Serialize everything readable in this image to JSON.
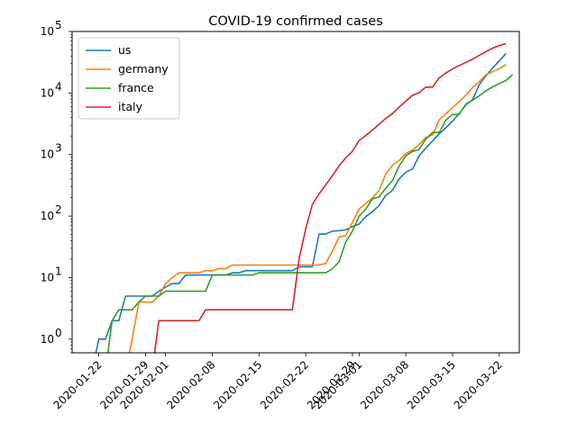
{
  "chart_data": {
    "type": "line",
    "title": "COVID-19 confirmed cases",
    "xlabel": "",
    "ylabel": "",
    "yscale": "log",
    "ylim": [
      0.6,
      100000
    ],
    "xlim": [
      "2020-01-18",
      "2020-03-25"
    ],
    "grid": false,
    "legend_position": "top-left",
    "x_ticks": [
      "2020-01-22",
      "2020-01-29",
      "2020-02-01",
      "2020-02-08",
      "2020-02-15",
      "2020-02-22",
      "2020-02-29",
      "2020-03-01",
      "2020-03-08",
      "2020-03-15",
      "2020-03-22"
    ],
    "y_ticks": [
      {
        "base": "10",
        "exp": "0",
        "value": 1
      },
      {
        "base": "10",
        "exp": "1",
        "value": 10
      },
      {
        "base": "10",
        "exp": "2",
        "value": 100
      },
      {
        "base": "10",
        "exp": "3",
        "value": 1000
      },
      {
        "base": "10",
        "exp": "4",
        "value": 10000
      },
      {
        "base": "10",
        "exp": "5",
        "value": 100000
      }
    ],
    "series": [
      {
        "name": "us",
        "color": "#1f77b4",
        "points": [
          [
            "2020-01-22",
            1
          ],
          [
            "2020-01-23",
            1
          ],
          [
            "2020-01-24",
            2
          ],
          [
            "2020-01-25",
            2
          ],
          [
            "2020-01-26",
            5
          ],
          [
            "2020-01-27",
            5
          ],
          [
            "2020-01-28",
            5
          ],
          [
            "2020-01-29",
            5
          ],
          [
            "2020-01-30",
            5
          ],
          [
            "2020-01-31",
            6
          ],
          [
            "2020-02-01",
            7
          ],
          [
            "2020-02-02",
            8
          ],
          [
            "2020-02-03",
            8
          ],
          [
            "2020-02-04",
            11
          ],
          [
            "2020-02-05",
            11
          ],
          [
            "2020-02-06",
            11
          ],
          [
            "2020-02-07",
            11
          ],
          [
            "2020-02-08",
            11
          ],
          [
            "2020-02-09",
            11
          ],
          [
            "2020-02-10",
            11
          ],
          [
            "2020-02-11",
            12
          ],
          [
            "2020-02-12",
            12
          ],
          [
            "2020-02-13",
            13
          ],
          [
            "2020-02-14",
            13
          ],
          [
            "2020-02-15",
            13
          ],
          [
            "2020-02-16",
            13
          ],
          [
            "2020-02-17",
            13
          ],
          [
            "2020-02-18",
            13
          ],
          [
            "2020-02-19",
            13
          ],
          [
            "2020-02-20",
            13
          ],
          [
            "2020-02-21",
            15
          ],
          [
            "2020-02-22",
            15
          ],
          [
            "2020-02-23",
            15
          ],
          [
            "2020-02-24",
            51
          ],
          [
            "2020-02-25",
            51
          ],
          [
            "2020-02-26",
            57
          ],
          [
            "2020-02-27",
            58
          ],
          [
            "2020-02-28",
            60
          ],
          [
            "2020-02-29",
            68
          ],
          [
            "2020-03-01",
            74
          ],
          [
            "2020-03-02",
            98
          ],
          [
            "2020-03-03",
            118
          ],
          [
            "2020-03-04",
            149
          ],
          [
            "2020-03-05",
            217
          ],
          [
            "2020-03-06",
            262
          ],
          [
            "2020-03-07",
            402
          ],
          [
            "2020-03-08",
            518
          ],
          [
            "2020-03-09",
            583
          ],
          [
            "2020-03-10",
            959
          ],
          [
            "2020-03-11",
            1281
          ],
          [
            "2020-03-12",
            1663
          ],
          [
            "2020-03-13",
            2179
          ],
          [
            "2020-03-14",
            2727
          ],
          [
            "2020-03-15",
            3499
          ],
          [
            "2020-03-16",
            4632
          ],
          [
            "2020-03-17",
            6421
          ],
          [
            "2020-03-18",
            7786
          ],
          [
            "2020-03-19",
            13680
          ],
          [
            "2020-03-20",
            19101
          ],
          [
            "2020-03-21",
            25493
          ],
          [
            "2020-03-22",
            33276
          ],
          [
            "2020-03-23",
            43847
          ]
        ]
      },
      {
        "name": "germany",
        "color": "#ff7f0e",
        "points": [
          [
            "2020-01-27",
            1
          ],
          [
            "2020-01-28",
            4
          ],
          [
            "2020-01-29",
            4
          ],
          [
            "2020-01-30",
            4
          ],
          [
            "2020-01-31",
            5
          ],
          [
            "2020-02-01",
            8
          ],
          [
            "2020-02-02",
            10
          ],
          [
            "2020-02-03",
            12
          ],
          [
            "2020-02-04",
            12
          ],
          [
            "2020-02-05",
            12
          ],
          [
            "2020-02-06",
            12
          ],
          [
            "2020-02-07",
            13
          ],
          [
            "2020-02-08",
            13
          ],
          [
            "2020-02-09",
            14
          ],
          [
            "2020-02-10",
            14
          ],
          [
            "2020-02-11",
            16
          ],
          [
            "2020-02-12",
            16
          ],
          [
            "2020-02-13",
            16
          ],
          [
            "2020-02-14",
            16
          ],
          [
            "2020-02-15",
            16
          ],
          [
            "2020-02-16",
            16
          ],
          [
            "2020-02-17",
            16
          ],
          [
            "2020-02-18",
            16
          ],
          [
            "2020-02-19",
            16
          ],
          [
            "2020-02-20",
            16
          ],
          [
            "2020-02-21",
            16
          ],
          [
            "2020-02-22",
            16
          ],
          [
            "2020-02-23",
            16
          ],
          [
            "2020-02-24",
            16
          ],
          [
            "2020-02-25",
            17
          ],
          [
            "2020-02-26",
            27
          ],
          [
            "2020-02-27",
            46
          ],
          [
            "2020-02-28",
            48
          ],
          [
            "2020-02-29",
            79
          ],
          [
            "2020-03-01",
            130
          ],
          [
            "2020-03-02",
            159
          ],
          [
            "2020-03-03",
            196
          ],
          [
            "2020-03-04",
            262
          ],
          [
            "2020-03-05",
            482
          ],
          [
            "2020-03-06",
            670
          ],
          [
            "2020-03-07",
            799
          ],
          [
            "2020-03-08",
            1040
          ],
          [
            "2020-03-09",
            1176
          ],
          [
            "2020-03-10",
            1457
          ],
          [
            "2020-03-11",
            1908
          ],
          [
            "2020-03-12",
            2078
          ],
          [
            "2020-03-13",
            3675
          ],
          [
            "2020-03-14",
            4585
          ],
          [
            "2020-03-15",
            5795
          ],
          [
            "2020-03-16",
            7272
          ],
          [
            "2020-03-17",
            9257
          ],
          [
            "2020-03-18",
            12327
          ],
          [
            "2020-03-19",
            15320
          ],
          [
            "2020-03-20",
            19848
          ],
          [
            "2020-03-21",
            22213
          ],
          [
            "2020-03-22",
            24873
          ],
          [
            "2020-03-23",
            29056
          ]
        ]
      },
      {
        "name": "france",
        "color": "#2ca02c",
        "points": [
          [
            "2020-01-24",
            2
          ],
          [
            "2020-01-25",
            3
          ],
          [
            "2020-01-26",
            3
          ],
          [
            "2020-01-27",
            3
          ],
          [
            "2020-01-28",
            4
          ],
          [
            "2020-01-29",
            5
          ],
          [
            "2020-01-30",
            5
          ],
          [
            "2020-01-31",
            5
          ],
          [
            "2020-02-01",
            6
          ],
          [
            "2020-02-02",
            6
          ],
          [
            "2020-02-03",
            6
          ],
          [
            "2020-02-04",
            6
          ],
          [
            "2020-02-05",
            6
          ],
          [
            "2020-02-06",
            6
          ],
          [
            "2020-02-07",
            6
          ],
          [
            "2020-02-08",
            11
          ],
          [
            "2020-02-09",
            11
          ],
          [
            "2020-02-10",
            11
          ],
          [
            "2020-02-11",
            11
          ],
          [
            "2020-02-12",
            11
          ],
          [
            "2020-02-13",
            11
          ],
          [
            "2020-02-14",
            11
          ],
          [
            "2020-02-15",
            12
          ],
          [
            "2020-02-16",
            12
          ],
          [
            "2020-02-17",
            12
          ],
          [
            "2020-02-18",
            12
          ],
          [
            "2020-02-19",
            12
          ],
          [
            "2020-02-20",
            12
          ],
          [
            "2020-02-21",
            12
          ],
          [
            "2020-02-22",
            12
          ],
          [
            "2020-02-23",
            12
          ],
          [
            "2020-02-24",
            12
          ],
          [
            "2020-02-25",
            12
          ],
          [
            "2020-02-26",
            14
          ],
          [
            "2020-02-27",
            18
          ],
          [
            "2020-02-28",
            38
          ],
          [
            "2020-02-29",
            57
          ],
          [
            "2020-03-01",
            100
          ],
          [
            "2020-03-02",
            130
          ],
          [
            "2020-03-03",
            191
          ],
          [
            "2020-03-04",
            204
          ],
          [
            "2020-03-05",
            285
          ],
          [
            "2020-03-06",
            377
          ],
          [
            "2020-03-07",
            653
          ],
          [
            "2020-03-08",
            949
          ],
          [
            "2020-03-09",
            1126
          ],
          [
            "2020-03-10",
            1209
          ],
          [
            "2020-03-11",
            1784
          ],
          [
            "2020-03-12",
            2281
          ],
          [
            "2020-03-13",
            2281
          ],
          [
            "2020-03-14",
            3661
          ],
          [
            "2020-03-15",
            4469
          ],
          [
            "2020-03-16",
            4499
          ],
          [
            "2020-03-17",
            6633
          ],
          [
            "2020-03-18",
            7652
          ],
          [
            "2020-03-19",
            9043
          ],
          [
            "2020-03-20",
            10871
          ],
          [
            "2020-03-21",
            12612
          ],
          [
            "2020-03-22",
            14282
          ],
          [
            "2020-03-23",
            16018
          ],
          [
            "2020-03-24",
            19856
          ]
        ]
      },
      {
        "name": "italy",
        "color": "#d62728",
        "points": [
          [
            "2020-01-31",
            2
          ],
          [
            "2020-02-01",
            2
          ],
          [
            "2020-02-02",
            2
          ],
          [
            "2020-02-03",
            2
          ],
          [
            "2020-02-04",
            2
          ],
          [
            "2020-02-05",
            2
          ],
          [
            "2020-02-06",
            2
          ],
          [
            "2020-02-07",
            3
          ],
          [
            "2020-02-08",
            3
          ],
          [
            "2020-02-09",
            3
          ],
          [
            "2020-02-10",
            3
          ],
          [
            "2020-02-11",
            3
          ],
          [
            "2020-02-12",
            3
          ],
          [
            "2020-02-13",
            3
          ],
          [
            "2020-02-14",
            3
          ],
          [
            "2020-02-15",
            3
          ],
          [
            "2020-02-16",
            3
          ],
          [
            "2020-02-17",
            3
          ],
          [
            "2020-02-18",
            3
          ],
          [
            "2020-02-19",
            3
          ],
          [
            "2020-02-20",
            3
          ],
          [
            "2020-02-21",
            20
          ],
          [
            "2020-02-22",
            62
          ],
          [
            "2020-02-23",
            155
          ],
          [
            "2020-02-24",
            229
          ],
          [
            "2020-02-25",
            322
          ],
          [
            "2020-02-26",
            453
          ],
          [
            "2020-02-27",
            655
          ],
          [
            "2020-02-28",
            888
          ],
          [
            "2020-02-29",
            1128
          ],
          [
            "2020-03-01",
            1694
          ],
          [
            "2020-03-02",
            2036
          ],
          [
            "2020-03-03",
            2502
          ],
          [
            "2020-03-04",
            3089
          ],
          [
            "2020-03-05",
            3858
          ],
          [
            "2020-03-06",
            4636
          ],
          [
            "2020-03-07",
            5883
          ],
          [
            "2020-03-08",
            7375
          ],
          [
            "2020-03-09",
            9172
          ],
          [
            "2020-03-10",
            10149
          ],
          [
            "2020-03-11",
            12462
          ],
          [
            "2020-03-12",
            12462
          ],
          [
            "2020-03-13",
            17660
          ],
          [
            "2020-03-14",
            21157
          ],
          [
            "2020-03-15",
            24747
          ],
          [
            "2020-03-16",
            27980
          ],
          [
            "2020-03-17",
            31506
          ],
          [
            "2020-03-18",
            35713
          ],
          [
            "2020-03-19",
            41035
          ],
          [
            "2020-03-20",
            47021
          ],
          [
            "2020-03-21",
            53578
          ],
          [
            "2020-03-22",
            59138
          ],
          [
            "2020-03-23",
            63927
          ]
        ]
      }
    ]
  }
}
